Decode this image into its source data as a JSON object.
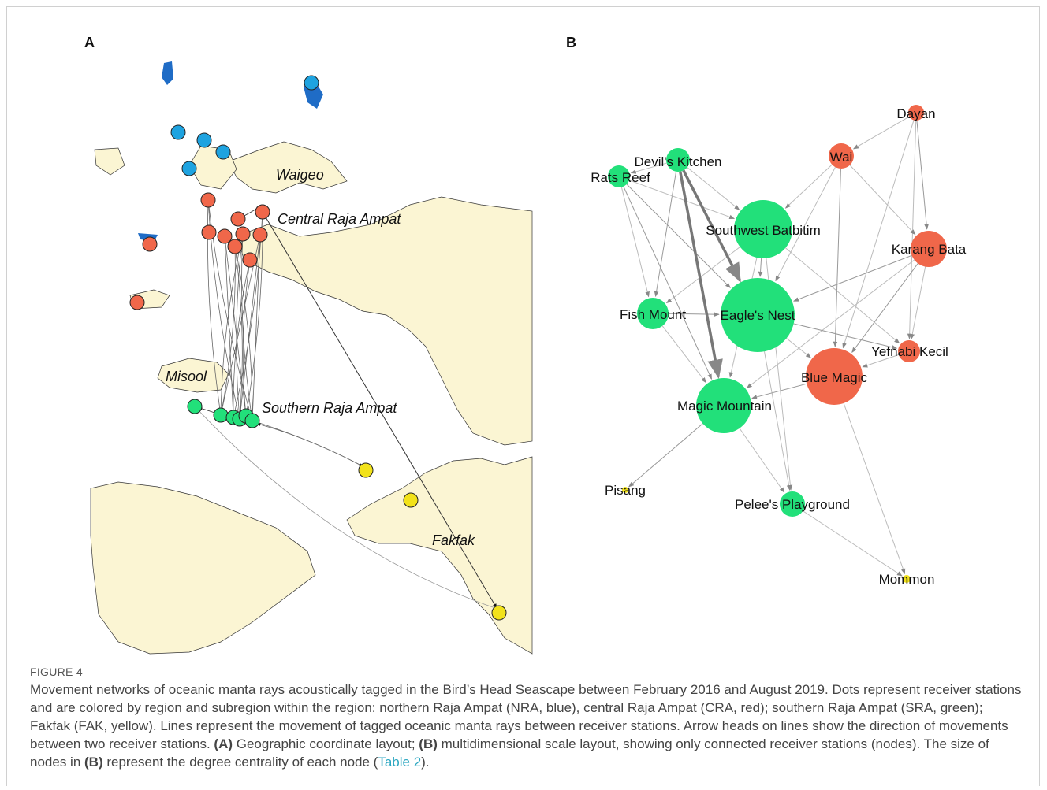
{
  "panels": {
    "a": "A",
    "b": "B"
  },
  "map_labels": [
    "Waigeo",
    "Central Raja Ampat",
    "Misool",
    "Southern Raja Ampat",
    "Fakfak"
  ],
  "network": {
    "nodes": [
      "Dayan",
      "Wai",
      "Devil's Kitchen",
      "Rats Reef",
      "Southwest Batbitim",
      "Karang Bata",
      "Fish Mount",
      "Eagle's Nest",
      "Yefnabi Kecil",
      "Blue Magic",
      "Magic Mountain",
      "Pisang",
      "Pelee's Playground",
      "Mommon"
    ]
  },
  "caption": {
    "label": "FIGURE 4",
    "segments": [
      "Movement networks of oceanic manta rays acoustically tagged in the Bird’s Head Seascape between February 2016 and August 2019. Dots represent receiver stations and are colored by region and subregion within the region: northern Raja Ampat (NRA, blue), central Raja Ampat (CRA, red); southern Raja Ampat (SRA, green); Fakfak (FAK, yellow). Lines represent the movement of tagged oceanic manta rays between receiver stations. Arrow heads on lines show the direction of movements between two receiver stations. ",
      "(A)",
      " Geographic coordinate layout; ",
      "(B)",
      " multidimensional scale layout, showing only connected receiver stations (nodes). The size of nodes in ",
      "(B)",
      " represent the degree centrality of each node (",
      "Table 2",
      ")."
    ]
  }
}
